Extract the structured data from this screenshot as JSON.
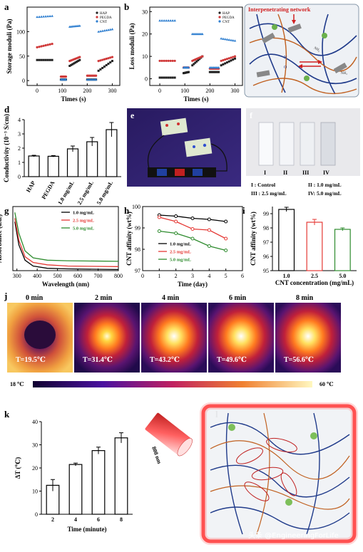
{
  "panels": {
    "a": "a",
    "b": "b",
    "c": "c",
    "d": "d",
    "e": "e",
    "f": "f",
    "g": "g",
    "h": "h",
    "i": "i",
    "j": "j",
    "k": "k",
    "l": "l"
  },
  "colors": {
    "hap": "#222222",
    "pegda": "#d03a3a",
    "cnt": "#2f7fd0",
    "lineRed": "#e53935",
    "lineGreen": "#2e8b2e"
  },
  "c_text": {
    "title": "Interpenetrating network",
    "nh2": "NH₂",
    "nh2b": "NH₂"
  },
  "f_text": {
    "labels": [
      "I",
      "II",
      "III",
      "IV"
    ],
    "legend1": "I : Control",
    "legend2": "II : 1.0 mg/mL",
    "legend3": "III : 2.5 mg/mL",
    "legend4": "IV: 5.0 mg/mL"
  },
  "j_text": {
    "times": [
      "0 min",
      "2 min",
      "4 min",
      "6 min",
      "8 min"
    ],
    "temps": [
      "T=19.5℃",
      "T=31.4℃",
      "T=43.2℃",
      "T=49.6℃",
      "T=56.6℃"
    ],
    "scale_min": "18 ℃",
    "scale_max": "60 ℃"
  },
  "l_text": {
    "laser": "808 nm"
  },
  "watermark": "头条 @EngineeringForLife",
  "chart_data": [
    {
      "id": "a",
      "type": "scatter",
      "xlabel": "Times (s)",
      "ylabel": "Storage moduli (Pa)",
      "xticks": [
        "0",
        "100",
        "200",
        "300"
      ],
      "yticks": [
        "0",
        "50",
        "100"
      ],
      "xlim": [
        -40,
        330
      ],
      "ylim": [
        -10,
        150
      ],
      "legend": [
        "HAP",
        "PEGDA",
        "CNT"
      ],
      "series": [
        {
          "name": "HAP",
          "segments": [
            {
              "x": [
                0,
                60
              ],
              "y": [
                42,
                42
              ]
            },
            {
              "x": [
                95,
                115
              ],
              "y": [
                2,
                2
              ]
            },
            {
              "x": [
                130,
                170
              ],
              "y": [
                30,
                42
              ]
            },
            {
              "x": [
                200,
                235
              ],
              "y": [
                2,
                2
              ]
            },
            {
              "x": [
                245,
                300
              ],
              "y": [
                20,
                40
              ]
            }
          ]
        },
        {
          "name": "PEGDA",
          "segments": [
            {
              "x": [
                0,
                60
              ],
              "y": [
                68,
                75
              ]
            },
            {
              "x": [
                95,
                115
              ],
              "y": [
                8,
                8
              ]
            },
            {
              "x": [
                130,
                170
              ],
              "y": [
                40,
                48
              ]
            },
            {
              "x": [
                200,
                235
              ],
              "y": [
                10,
                10
              ]
            },
            {
              "x": [
                245,
                300
              ],
              "y": [
                40,
                48
              ]
            }
          ]
        },
        {
          "name": "CNT",
          "segments": [
            {
              "x": [
                0,
                60
              ],
              "y": [
                130,
                132
              ]
            },
            {
              "x": [
                95,
                115
              ],
              "y": [
                2,
                2
              ]
            },
            {
              "x": [
                130,
                170
              ],
              "y": [
                110,
                112
              ]
            },
            {
              "x": [
                200,
                235
              ],
              "y": [
                2,
                2
              ]
            },
            {
              "x": [
                245,
                300
              ],
              "y": [
                100,
                105
              ]
            }
          ]
        }
      ]
    },
    {
      "id": "b",
      "type": "scatter",
      "xlabel": "Times (s)",
      "ylabel": "Loss moduli (Pa)",
      "xticks": [
        "0",
        "100",
        "200",
        "300"
      ],
      "yticks": [
        "0",
        "10",
        "20",
        "30"
      ],
      "xlim": [
        -40,
        330
      ],
      "ylim": [
        -3,
        32
      ],
      "legend": [
        "HAP",
        "PEGDA",
        "CNT"
      ],
      "series": [
        {
          "name": "HAP",
          "segments": [
            {
              "x": [
                0,
                60
              ],
              "y": [
                0.5,
                0.5
              ]
            },
            {
              "x": [
                95,
                115
              ],
              "y": [
                2.5,
                3
              ]
            },
            {
              "x": [
                130,
                170
              ],
              "y": [
                6,
                10
              ]
            },
            {
              "x": [
                200,
                235
              ],
              "y": [
                3,
                3
              ]
            },
            {
              "x": [
                245,
                300
              ],
              "y": [
                6,
                9
              ]
            }
          ]
        },
        {
          "name": "PEGDA",
          "segments": [
            {
              "x": [
                0,
                60
              ],
              "y": [
                8,
                8
              ]
            },
            {
              "x": [
                95,
                115
              ],
              "y": [
                5,
                5
              ]
            },
            {
              "x": [
                130,
                170
              ],
              "y": [
                8,
                10
              ]
            },
            {
              "x": [
                200,
                235
              ],
              "y": [
                4.5,
                4.5
              ]
            },
            {
              "x": [
                245,
                300
              ],
              "y": [
                8,
                10
              ]
            }
          ]
        },
        {
          "name": "CNT",
          "segments": [
            {
              "x": [
                0,
                60
              ],
              "y": [
                26,
                26
              ]
            },
            {
              "x": [
                95,
                115
              ],
              "y": [
                5,
                5
              ]
            },
            {
              "x": [
                130,
                170
              ],
              "y": [
                20,
                20
              ]
            },
            {
              "x": [
                200,
                235
              ],
              "y": [
                5,
                5
              ]
            },
            {
              "x": [
                245,
                300
              ],
              "y": [
                18,
                17
              ]
            }
          ]
        }
      ]
    },
    {
      "id": "d",
      "type": "bar",
      "ylabel": "Conductivity (10⁻³ S/cm)",
      "categories": [
        "HAP",
        "PEGDA",
        "1.0 mg/mL",
        "2.5 mg/mL",
        "5.0 mg/mL"
      ],
      "values": [
        1.45,
        1.43,
        1.95,
        2.45,
        3.3
      ],
      "errors": [
        0.05,
        0.05,
        0.2,
        0.3,
        0.5
      ],
      "yticks": [
        "0",
        "1",
        "2",
        "3",
        "4"
      ],
      "ylim": [
        0,
        4
      ]
    },
    {
      "id": "g",
      "type": "line",
      "xlabel": "Wavelength (nm)",
      "ylabel": "Absorbance (a.u.)",
      "xticks": [
        "300",
        "400",
        "500",
        "600",
        "700",
        "800"
      ],
      "xlim": [
        280,
        800
      ],
      "series": [
        {
          "name": "1.0 mg/mL",
          "color": "#000000",
          "x": [
            290,
            310,
            340,
            380,
            450,
            550,
            800
          ],
          "y": [
            0.42,
            0.22,
            0.09,
            0.04,
            0.02,
            0.015,
            0.01
          ]
        },
        {
          "name": "2.5 mg/mL",
          "color": "#e53935",
          "x": [
            290,
            310,
            340,
            380,
            450,
            550,
            800
          ],
          "y": [
            0.45,
            0.26,
            0.12,
            0.07,
            0.05,
            0.04,
            0.035
          ]
        },
        {
          "name": "5.0 mg/mL",
          "color": "#2e8b2e",
          "x": [
            290,
            310,
            340,
            380,
            450,
            550,
            800
          ],
          "y": [
            0.5,
            0.32,
            0.17,
            0.11,
            0.09,
            0.085,
            0.08
          ]
        }
      ],
      "ylim": [
        0,
        0.55
      ]
    },
    {
      "id": "h",
      "type": "line",
      "xlabel": "Time (day)",
      "ylabel": "CNT affinity (wt%)",
      "xticks": [
        "0",
        "1",
        "2",
        "3",
        "4",
        "5",
        "6"
      ],
      "yticks": [
        "97",
        "98",
        "99",
        "100"
      ],
      "xlim": [
        0,
        6
      ],
      "ylim": [
        97,
        100
      ],
      "series": [
        {
          "name": "1.0 mg/mL",
          "color": "#000000",
          "x": [
            1,
            2,
            3,
            4,
            5
          ],
          "y": [
            99.6,
            99.55,
            99.45,
            99.4,
            99.3
          ]
        },
        {
          "name": "2.5 mg/mL",
          "color": "#e53935",
          "x": [
            1,
            2,
            3,
            4,
            5
          ],
          "y": [
            99.5,
            99.3,
            98.95,
            98.9,
            98.5
          ]
        },
        {
          "name": "5.0 mg/mL",
          "color": "#2e8b2e",
          "x": [
            1,
            2,
            3,
            4,
            5
          ],
          "y": [
            98.85,
            98.75,
            98.5,
            98.15,
            97.95
          ]
        }
      ]
    },
    {
      "id": "i",
      "type": "bar",
      "xlabel": "CNT concentration (mg/mL)",
      "ylabel": "CNT affinity (wt%)",
      "categories": [
        "1.0",
        "2.5",
        "5.0"
      ],
      "values": [
        99.3,
        98.4,
        97.9
      ],
      "errors": [
        0.15,
        0.2,
        0.1
      ],
      "colors": [
        "#000000",
        "#e53935",
        "#2e8b2e"
      ],
      "yticks": [
        "95",
        "96",
        "97",
        "98",
        "99"
      ],
      "ylim": [
        95,
        99.5
      ]
    },
    {
      "id": "k",
      "type": "bar",
      "xlabel": "Time (minute)",
      "ylabel": "ΔT (℃)",
      "categories": [
        "2",
        "4",
        "6",
        "8"
      ],
      "values": [
        12.5,
        21.5,
        27.5,
        33
      ],
      "errors": [
        2.5,
        0.6,
        1.5,
        2.2
      ],
      "yticks": [
        "0",
        "10",
        "20",
        "30",
        "40"
      ],
      "ylim": [
        0,
        40
      ]
    }
  ]
}
